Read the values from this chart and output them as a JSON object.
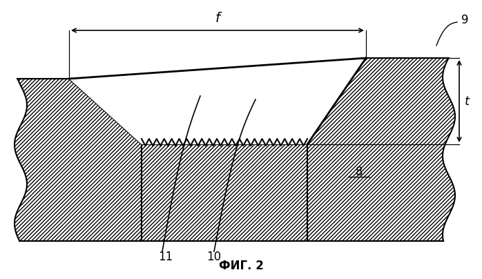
{
  "title": "ФИГ. 2",
  "label_f": "f",
  "label_t": "t",
  "label_8": "8",
  "label_9": "9",
  "label_10": "10",
  "label_11": "11",
  "background": "#ffffff",
  "hatch_color": "#000000",
  "line_color": "#000000",
  "fig_width": 6.98,
  "fig_height": 4.04,
  "dpi": 100
}
